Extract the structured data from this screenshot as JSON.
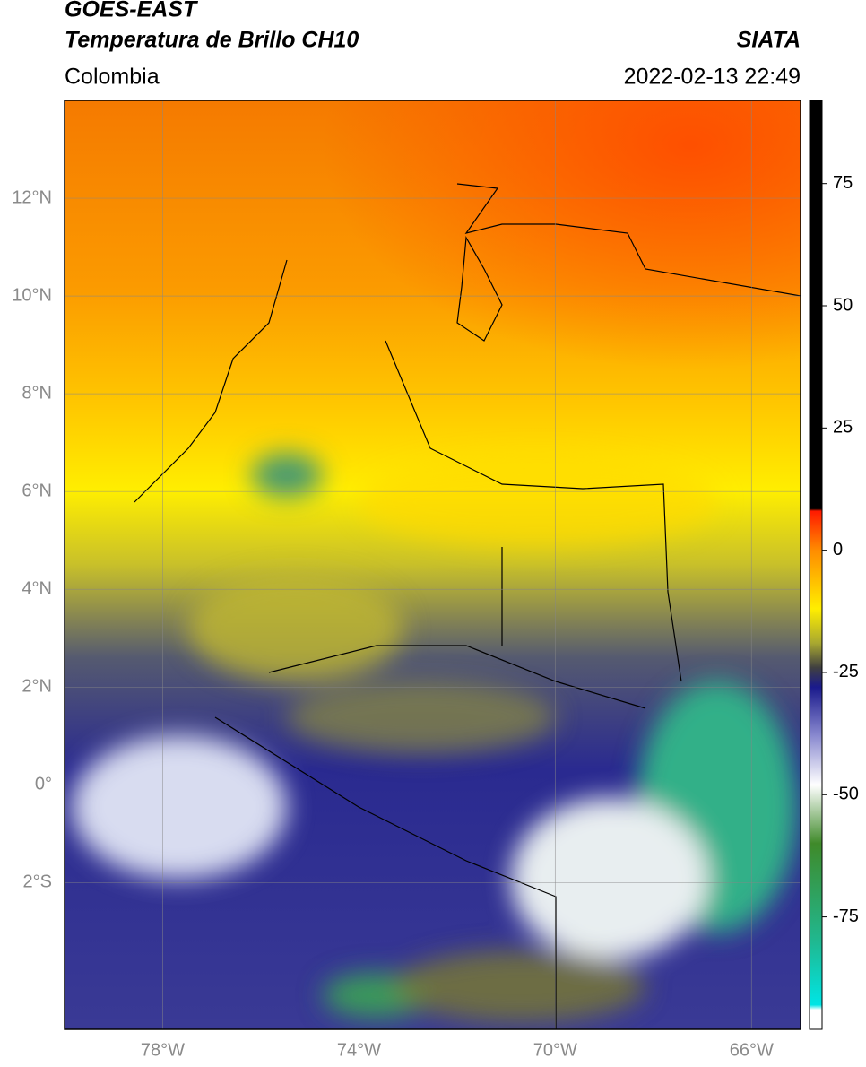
{
  "header": {
    "title": "GOES-EAST",
    "subtitle": "Temperatura de Brillo CH10",
    "agency": "SIATA",
    "region": "Colombia",
    "timestamp": "2022-02-13 22:49"
  },
  "map": {
    "xlim": [
      -80,
      -65
    ],
    "ylim": [
      -5,
      14
    ],
    "grid": true,
    "xticks": [
      {
        "value": -78,
        "label": "78°W"
      },
      {
        "value": -74,
        "label": "74°W"
      },
      {
        "value": -70,
        "label": "70°W"
      },
      {
        "value": -66,
        "label": "66°W"
      }
    ],
    "yticks": [
      {
        "value": 12,
        "label": "12°N"
      },
      {
        "value": 10,
        "label": "10°N"
      },
      {
        "value": 8,
        "label": "8°N"
      },
      {
        "value": 6,
        "label": "6°N"
      },
      {
        "value": 4,
        "label": "4°N"
      },
      {
        "value": 2,
        "label": "2°N"
      },
      {
        "value": 0,
        "label": "0°"
      },
      {
        "value": -2,
        "label": "2°S"
      }
    ]
  },
  "colorbar": {
    "lim": [
      -98,
      92
    ],
    "ticks": [
      75,
      50,
      25,
      0,
      -25,
      -50,
      -75
    ],
    "stops": [
      {
        "value": 92,
        "color": "#000000"
      },
      {
        "value": 8.5,
        "color": "#000000"
      },
      {
        "value": 8,
        "color": "#ff1a00"
      },
      {
        "value": 0,
        "color": "#ff8c00"
      },
      {
        "value": -12,
        "color": "#ffee00"
      },
      {
        "value": -19,
        "color": "#a8a830"
      },
      {
        "value": -24,
        "color": "#404040"
      },
      {
        "value": -28,
        "color": "#1a1a8c"
      },
      {
        "value": -38,
        "color": "#8a8ad0"
      },
      {
        "value": -48,
        "color": "#ffffff"
      },
      {
        "value": -60,
        "color": "#3f8a2a"
      },
      {
        "value": -80,
        "color": "#20b890"
      },
      {
        "value": -93,
        "color": "#00e5e5"
      },
      {
        "value": -94,
        "color": "#ffffff"
      },
      {
        "value": -98,
        "color": "#ffffff"
      }
    ]
  }
}
